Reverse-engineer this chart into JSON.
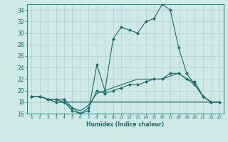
{
  "xlabel": "Humidex (Indice chaleur)",
  "xlim": [
    -0.5,
    23.5
  ],
  "ylim": [
    16,
    35
  ],
  "yticks": [
    16,
    18,
    20,
    22,
    24,
    26,
    28,
    30,
    32,
    34
  ],
  "xticks": [
    0,
    1,
    2,
    3,
    4,
    5,
    6,
    7,
    8,
    9,
    10,
    11,
    12,
    13,
    14,
    15,
    16,
    17,
    18,
    19,
    20,
    21,
    22,
    23
  ],
  "bg_color": "#cfe8e8",
  "line_color": "#1a6e6e",
  "grid_color": "#b0d0d0",
  "lines": [
    {
      "x": [
        0,
        1,
        2,
        3,
        4,
        5,
        6,
        7,
        8,
        9,
        10,
        11,
        12,
        13,
        14,
        15,
        16,
        17,
        18,
        19,
        20,
        21,
        22,
        23
      ],
      "y": [
        19,
        19,
        18.5,
        18.5,
        18.5,
        17,
        16,
        16.5,
        24.5,
        20,
        29,
        31,
        30.5,
        30,
        32,
        32.5,
        35,
        34,
        27.5,
        23,
        21,
        19,
        18,
        18
      ],
      "marker": "D",
      "markersize": 2.0
    },
    {
      "x": [
        0,
        1,
        2,
        3,
        4,
        5,
        6,
        7,
        8,
        9,
        10,
        11,
        12,
        13,
        14,
        15,
        16,
        17,
        18,
        19,
        20,
        21,
        22,
        23
      ],
      "y": [
        19,
        19,
        18.5,
        18,
        18,
        16.5,
        16,
        17,
        20,
        19.5,
        20,
        20.5,
        21,
        21,
        21.5,
        22,
        22,
        23,
        23,
        22,
        21.5,
        19,
        18,
        18
      ],
      "marker": "D",
      "markersize": 2.0
    },
    {
      "x": [
        0,
        1,
        2,
        3,
        4,
        5,
        6,
        7,
        8,
        9,
        10,
        11,
        12,
        13,
        14,
        15,
        16,
        17,
        18,
        19,
        20,
        21,
        22,
        23
      ],
      "y": [
        19,
        19,
        18.5,
        18,
        18,
        17,
        16.5,
        17.5,
        19.5,
        20,
        20.5,
        21,
        21.5,
        22,
        22,
        22,
        22,
        22.5,
        23,
        22,
        21,
        19,
        18,
        18
      ],
      "marker": null,
      "markersize": 0
    },
    {
      "x": [
        0,
        1,
        2,
        3,
        4,
        5,
        6,
        7,
        8,
        9,
        10,
        11,
        12,
        13,
        14,
        15,
        16,
        17,
        18,
        19,
        20,
        21,
        22,
        23
      ],
      "y": [
        19,
        19,
        18.5,
        18.5,
        18,
        18,
        18,
        18,
        18,
        18,
        18,
        18,
        18,
        18,
        18,
        18,
        18,
        18,
        18,
        18,
        18,
        18,
        18,
        18
      ],
      "marker": null,
      "markersize": 0
    }
  ]
}
